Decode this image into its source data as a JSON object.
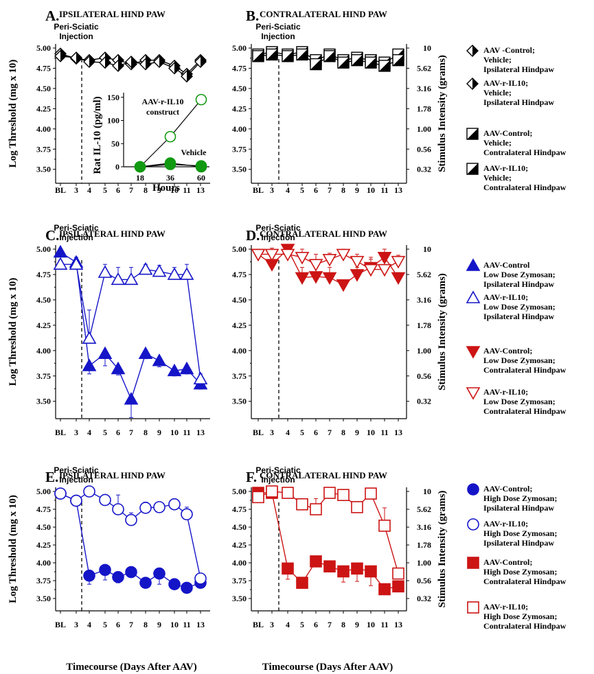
{
  "figure": {
    "xlabel": "Timecourse (Days After AAV)",
    "ylabel_left": "Log Threshold (mg x 10)",
    "ylabel_right": "Stimulus Intensity (grams)",
    "injection_label": [
      "Peri-Sciatic",
      "Injection"
    ],
    "x_ticks": [
      "BL",
      "3",
      "4",
      "5",
      "6",
      "7",
      "8",
      "9",
      "10",
      "11",
      "13"
    ],
    "y_ticks": [
      "5.00",
      "4.75",
      "4.50",
      "4.25",
      "4.00",
      "3.75",
      "3.50"
    ],
    "y_right_ticks": [
      "10",
      "5.62",
      "3.16",
      "1.78",
      "1.00",
      "0.56",
      "0.32"
    ]
  },
  "inset": {
    "ylabel": "Rat IL-10 (pg/ml)",
    "xlabel": "Hours",
    "x_ticks": [
      "18",
      "36",
      "60"
    ],
    "y_ticks": [
      "150",
      "100",
      "50",
      "0"
    ],
    "label_construct": [
      "AAV-r-IL10",
      "construct"
    ],
    "label_vehicle": "Vehicle"
  },
  "legends": {
    "AB": [
      {
        "marker": "diamond",
        "lines": [
          "AAV -Control;",
          "Vehicle;",
          "Ipsilateral Hindpaw"
        ]
      },
      {
        "marker": "diamond",
        "lines": [
          "AAV-r-IL10;",
          "Vehicle;",
          "Ipsilateral Hindpaw"
        ]
      },
      {
        "marker": "halfsq",
        "lines": [
          "AAV-Control;",
          "Vehicle;",
          "Contralateral Hindpaw"
        ]
      },
      {
        "marker": "halfsq",
        "lines": [
          "AAV-r-IL10;",
          "Vehicle;",
          "Contralateral Hindpaw"
        ]
      }
    ],
    "CD": [
      {
        "marker": "tri-up-filled",
        "lines": [
          "AAV-Control",
          "Low Dose Zymosan;",
          "Ipsilateral Hindpaw"
        ]
      },
      {
        "marker": "tri-up-open",
        "lines": [
          "AAV-r-IL10;",
          "Low Dose Zymosan;",
          "Ipsilateral Hindpaw"
        ]
      },
      {
        "marker": "tri-down-filled",
        "lines": [
          "AAV-Control;",
          "Low Dose Zymosan;",
          "Contralateral Hindpaw"
        ]
      },
      {
        "marker": "tri-down-open",
        "lines": [
          "AAV-r-IL10;",
          "Low Dose Zymosan;",
          "Contralateral Hindpaw"
        ]
      }
    ],
    "EF": [
      {
        "marker": "circle-filled",
        "lines": [
          "AAV-Control;",
          "High Dose Zymosan;",
          "Ipsilateral Hindpaw"
        ]
      },
      {
        "marker": "circle-open",
        "lines": [
          "AAV-r-IL10;",
          "High Dose Zymosan;",
          "Ipsilateral Hindpaw"
        ]
      },
      {
        "marker": "square-filled",
        "lines": [
          "AAV-Control;",
          "High Dose Zymosan;",
          "Contralateral Hindpaw"
        ]
      },
      {
        "marker": "square-open",
        "lines": [
          "AAV-r-IL10;",
          "High Dose Zymosan;",
          "Contralateral Hindpaw"
        ]
      }
    ]
  },
  "colors": {
    "blue": "#1515c8",
    "red": "#cc1414",
    "black": "#000000",
    "green": "#119911"
  },
  "chart_data": [
    {
      "type": "line",
      "panel": "A",
      "title": "IPSILATERAL HIND PAW",
      "categories": [
        "BL",
        "3",
        "4",
        "5",
        "6",
        "7",
        "8",
        "9",
        "10",
        "11",
        "13"
      ],
      "ylim": [
        3.3,
        5.05
      ],
      "series": [
        {
          "name": "AAV -Control; Vehicle; Ipsilateral Hindpaw",
          "marker": "diamond",
          "color": "#000000",
          "values": [
            4.93,
            4.87,
            4.85,
            4.88,
            4.85,
            4.8,
            4.85,
            4.85,
            4.78,
            4.68,
            4.85
          ],
          "errors": [
            0.03,
            0.03,
            0.03,
            0.03,
            0.03,
            0.04,
            0.03,
            0.03,
            0.04,
            0.05,
            0.03
          ]
        },
        {
          "name": "AAV-r-IL10; Vehicle; Ipsilateral Hindpaw",
          "marker": "diamond",
          "color": "#000000",
          "values": [
            4.9,
            4.88,
            4.83,
            4.82,
            4.78,
            4.83,
            4.8,
            4.83,
            4.75,
            4.65,
            4.83
          ],
          "errors": [
            0.03,
            0.03,
            0.03,
            0.03,
            0.04,
            0.03,
            0.03,
            0.03,
            0.04,
            0.05,
            0.03
          ]
        }
      ]
    },
    {
      "type": "line",
      "panel": "B",
      "title": "CONTRALATERAL HIND PAW",
      "categories": [
        "BL",
        "3",
        "4",
        "5",
        "6",
        "7",
        "8",
        "9",
        "10",
        "11",
        "13"
      ],
      "ylim": [
        3.3,
        5.05
      ],
      "series": [
        {
          "name": "AAV-Control; Vehicle; Contralateral Hindpaw",
          "marker": "halfsq",
          "color": "#000000",
          "values": [
            4.92,
            4.95,
            4.92,
            4.95,
            4.85,
            4.92,
            4.85,
            4.88,
            4.85,
            4.82,
            4.92
          ],
          "errors": [
            0.02,
            0.04,
            0.03,
            0.02,
            0.05,
            0.02,
            0.05,
            0.03,
            0.04,
            0.04,
            0.03
          ]
        },
        {
          "name": "AAV-r-IL10; Vehicle; Contralateral Hindpaw",
          "marker": "halfsq",
          "color": "#000000",
          "values": [
            4.9,
            4.92,
            4.9,
            4.92,
            4.8,
            4.9,
            4.82,
            4.85,
            4.82,
            4.78,
            4.85
          ],
          "errors": [
            0.02,
            0.03,
            0.03,
            0.02,
            0.05,
            0.02,
            0.05,
            0.03,
            0.04,
            0.04,
            0.03
          ]
        }
      ]
    },
    {
      "type": "line",
      "panel": "C",
      "title": "IPSILATERAL HIND PAW",
      "categories": [
        "BL",
        "3",
        "4",
        "5",
        "6",
        "7",
        "8",
        "9",
        "10",
        "11",
        "13"
      ],
      "ylim": [
        3.3,
        5.05
      ],
      "series": [
        {
          "name": "AAV-Control Low Dose Zymosan; Ipsilateral Hindpaw",
          "marker": "tri-up-filled",
          "color": "#1515c8",
          "values": [
            4.97,
            4.87,
            3.85,
            3.97,
            3.82,
            3.52,
            3.97,
            3.9,
            3.8,
            3.82,
            3.67
          ],
          "errors": [
            0.03,
            0.05,
            0.08,
            0.12,
            0.06,
            0.18,
            0.05,
            0.06,
            0.05,
            0.05,
            0.05
          ]
        },
        {
          "name": "AAV-r-IL10; Low Dose Zymosan; Ipsilateral Hindpaw",
          "marker": "tri-up-open",
          "color": "#1515c8",
          "values": [
            4.85,
            4.85,
            4.12,
            4.77,
            4.7,
            4.7,
            4.8,
            4.78,
            4.75,
            4.75,
            3.72
          ],
          "errors": [
            0.04,
            0.05,
            0.28,
            0.08,
            0.12,
            0.12,
            0.05,
            0.06,
            0.07,
            0.1,
            0.05
          ]
        }
      ]
    },
    {
      "type": "line",
      "panel": "D",
      "title": "CONTRALATERAL HIND PAW",
      "categories": [
        "BL",
        "3",
        "4",
        "5",
        "6",
        "7",
        "8",
        "9",
        "10",
        "11",
        "13"
      ],
      "ylim": [
        3.3,
        5.05
      ],
      "series": [
        {
          "name": "AAV-Control; Low Dose Zymosan; Contralateral Hindpaw",
          "marker": "tri-down-filled",
          "color": "#cc1414",
          "values": [
            4.95,
            4.85,
            5.0,
            4.72,
            4.73,
            4.72,
            4.65,
            4.75,
            4.82,
            4.92,
            4.72
          ],
          "errors": [
            0.05,
            0.08,
            0.04,
            0.1,
            0.1,
            0.1,
            0.04,
            0.07,
            0.1,
            0.08,
            0.05
          ]
        },
        {
          "name": "AAV-r-IL10; Low Dose Zymosan; Contralateral Hindpaw",
          "marker": "tri-down-open",
          "color": "#cc1414",
          "values": [
            4.95,
            4.95,
            4.95,
            4.92,
            4.85,
            4.9,
            4.95,
            4.88,
            4.8,
            4.8,
            4.88
          ],
          "errors": [
            0.04,
            0.06,
            0.04,
            0.08,
            0.1,
            0.06,
            0.05,
            0.07,
            0.1,
            0.08,
            0.06
          ]
        }
      ]
    },
    {
      "type": "line",
      "panel": "E",
      "title": "IPSILATERAL HIND PAW",
      "categories": [
        "BL",
        "3",
        "4",
        "5",
        "6",
        "7",
        "8",
        "9",
        "10",
        "11",
        "13"
      ],
      "ylim": [
        3.3,
        5.05
      ],
      "series": [
        {
          "name": "AAV-Control; High Dose Zymosan; Ipsilateral Hindpaw",
          "marker": "circle-filled",
          "color": "#1515c8",
          "values": [
            4.97,
            4.87,
            3.82,
            3.9,
            3.8,
            3.87,
            3.72,
            3.85,
            3.7,
            3.65,
            3.72
          ],
          "errors": [
            0.03,
            0.05,
            0.12,
            0.14,
            0.08,
            0.06,
            0.05,
            0.15,
            0.05,
            0.05,
            0.05
          ]
        },
        {
          "name": "AAV-r-IL10; High Dose Zymosan; Ipsilateral Hindpaw",
          "marker": "circle-open",
          "color": "#1515c8",
          "values": [
            4.97,
            4.87,
            5.0,
            4.88,
            4.75,
            4.6,
            4.77,
            4.78,
            4.82,
            4.68,
            3.78
          ],
          "errors": [
            0.03,
            0.05,
            0.04,
            0.05,
            0.2,
            0.1,
            0.08,
            0.05,
            0.05,
            0.1,
            0.05
          ]
        }
      ]
    },
    {
      "type": "line",
      "panel": "F",
      "title": "CONTRALATERAL HIND PAW",
      "categories": [
        "BL",
        "3",
        "4",
        "5",
        "6",
        "7",
        "8",
        "9",
        "10",
        "11",
        "13"
      ],
      "ylim": [
        3.3,
        5.05
      ],
      "series": [
        {
          "name": "AAV-Control; High Dose Zymosan; Contralateral Hindpaw",
          "marker": "square-filled",
          "color": "#cc1414",
          "values": [
            4.98,
            4.98,
            3.92,
            3.72,
            4.02,
            3.95,
            3.88,
            3.92,
            3.88,
            3.63,
            3.67
          ],
          "errors": [
            0.03,
            0.04,
            0.15,
            0.05,
            0.05,
            0.05,
            0.15,
            0.18,
            0.2,
            0.05,
            0.05
          ]
        },
        {
          "name": "AAV-r-IL10; High Dose Zymosan; Contralateral Hindpaw",
          "marker": "square-open",
          "color": "#cc1414",
          "values": [
            4.92,
            5.0,
            4.98,
            4.82,
            4.75,
            4.98,
            4.95,
            4.78,
            4.97,
            4.52,
            3.85
          ],
          "errors": [
            0.04,
            0.05,
            0.05,
            0.08,
            0.15,
            0.04,
            0.05,
            0.08,
            0.05,
            0.25,
            0.05
          ]
        }
      ]
    },
    {
      "type": "line",
      "panel": "A-inset",
      "ylim": [
        0,
        160
      ],
      "x": [
        18,
        36,
        60
      ],
      "series": [
        {
          "marker": "circle-open",
          "color": "#119911",
          "values": [
            0,
            65,
            145
          ]
        },
        {
          "marker": "circle-filled",
          "color": "#119911",
          "values": [
            0,
            5,
            2
          ]
        },
        {
          "marker": "circle-filled",
          "color": "#119911",
          "values": [
            0,
            8,
            0
          ]
        }
      ]
    }
  ]
}
